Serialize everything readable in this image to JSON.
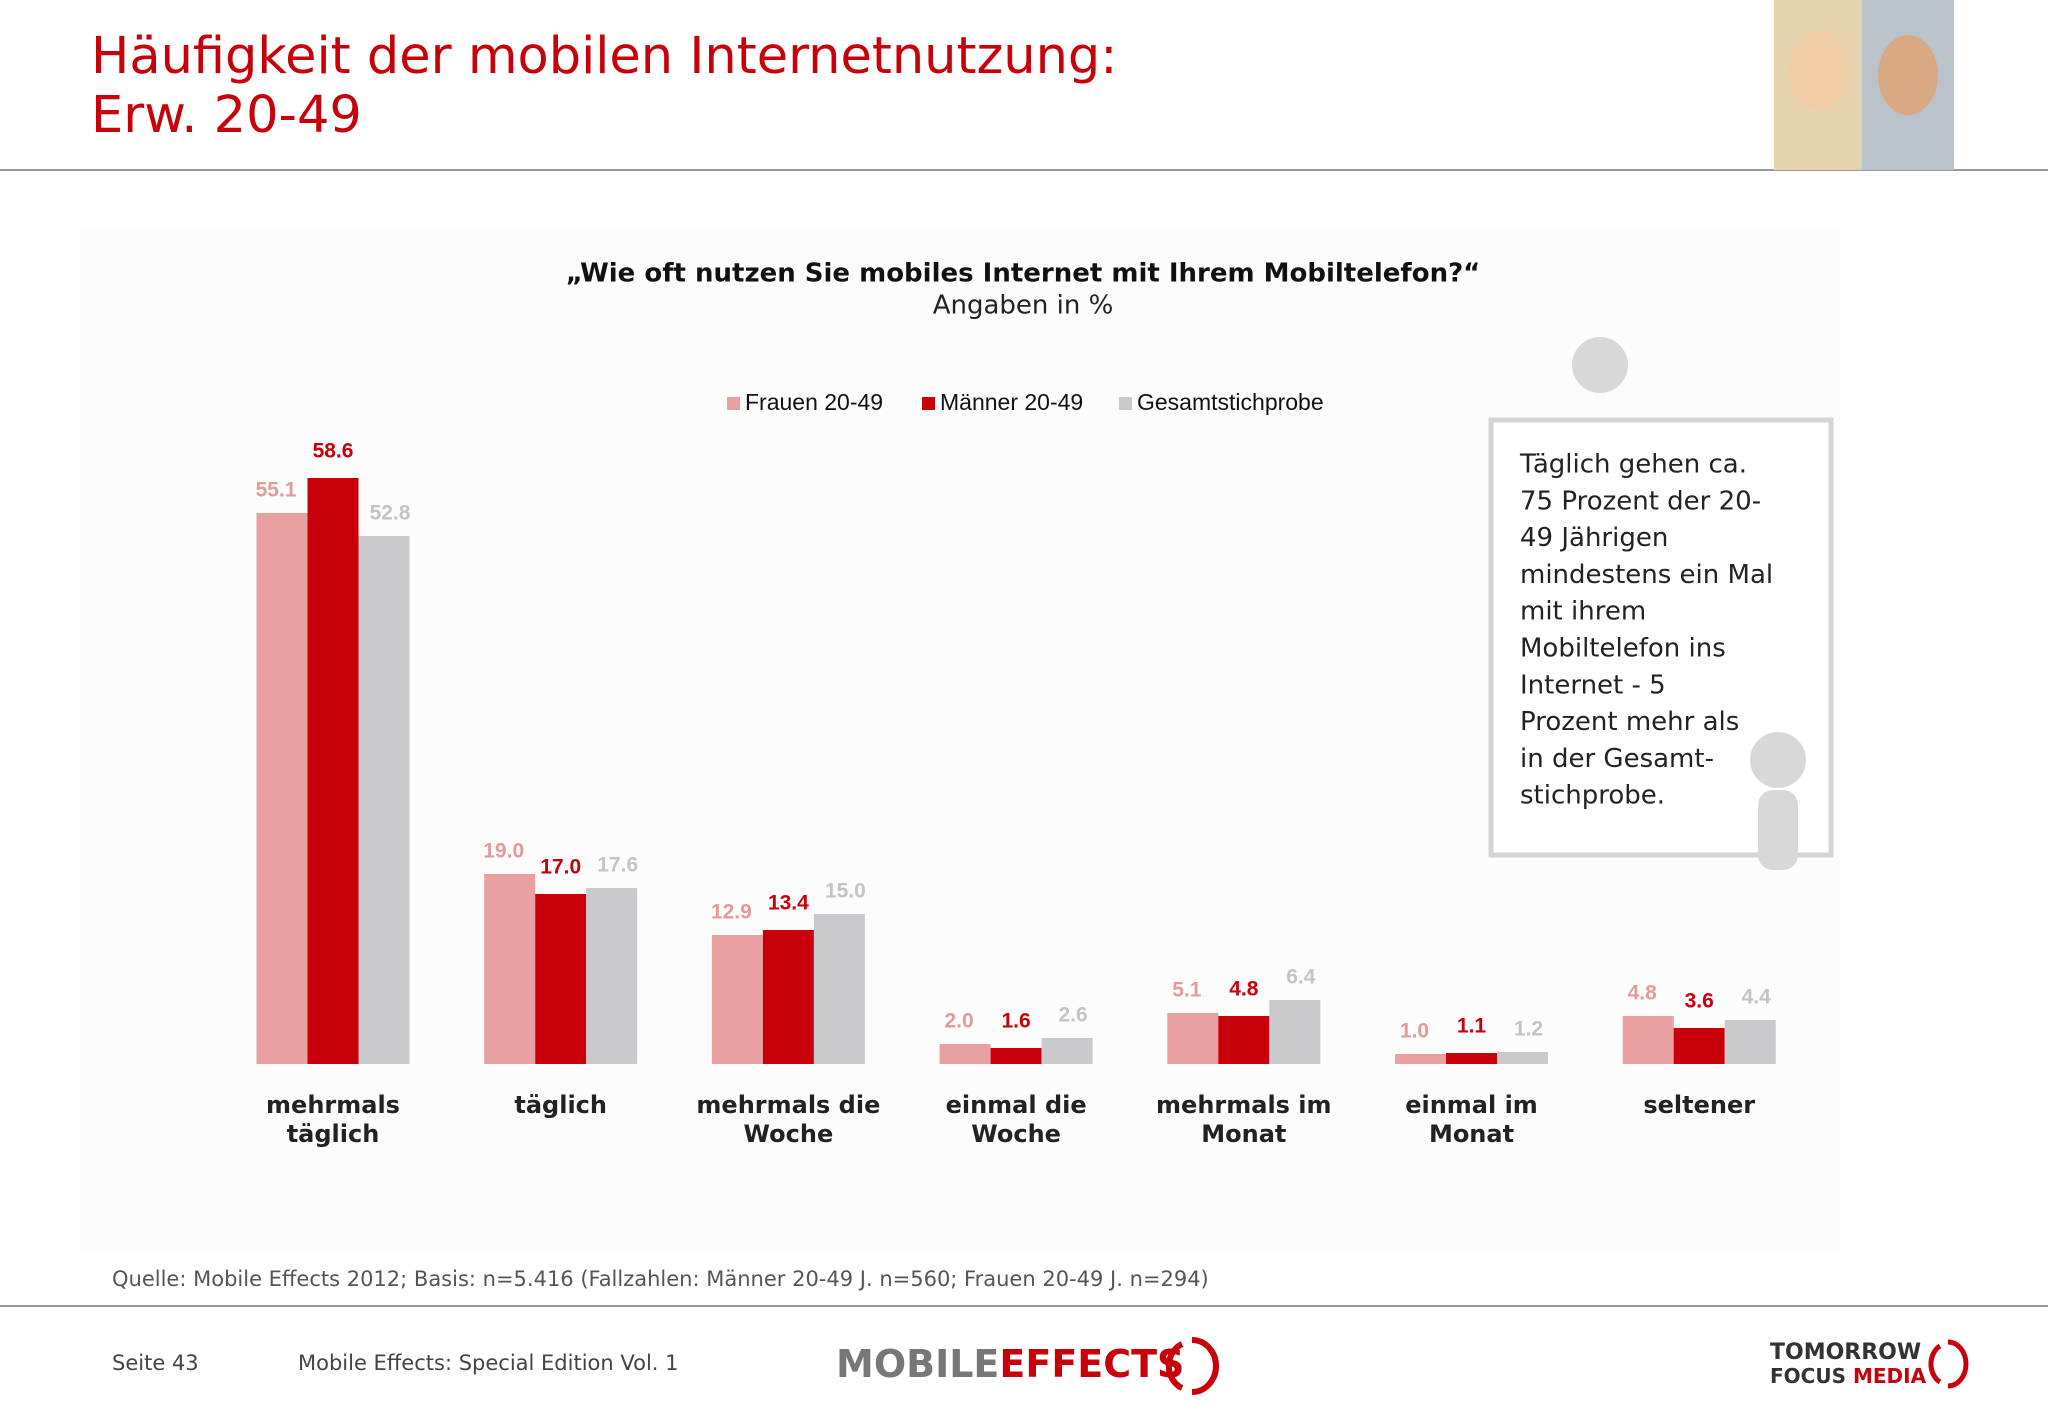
{
  "header": {
    "title_lines": [
      "Häufigkeit der mobilen Internetnutzung:",
      "Erw. 20-49"
    ]
  },
  "chart_data": {
    "type": "bar",
    "title": "„Wie oft nutzen Sie mobiles Internet mit Ihrem Mobiltelefon?“",
    "subtitle": "Angaben in %",
    "categories": [
      "mehrmals täglich",
      "täglich",
      "mehrmals die Woche",
      "einmal die Woche",
      "mehrmals im Monat",
      "einmal im Monat",
      "seltener"
    ],
    "series": [
      {
        "name": "Frauen 20-49",
        "color": "#e8a0a0",
        "label_color": "#e59a9a",
        "values": [
          55.1,
          19.0,
          12.9,
          2.0,
          5.1,
          1.0,
          4.8
        ],
        "value_labels": [
          "55.1",
          "19.0",
          "12.9",
          "2.0",
          "5.1",
          "1.0",
          "4.8"
        ]
      },
      {
        "name": "Männer 20-49",
        "color": "#c8000a",
        "label_color": "#c8000a",
        "values": [
          58.6,
          17.0,
          13.4,
          1.6,
          4.8,
          1.1,
          3.6
        ],
        "value_labels": [
          "58.6",
          "17.0",
          "13.4",
          "1.6",
          "4.8",
          "1.1",
          "3.6"
        ]
      },
      {
        "name": "Gesamtstichprobe",
        "color": "#c9c9cb",
        "label_color": "#c4c4c6",
        "values": [
          52.8,
          17.6,
          15.0,
          2.6,
          6.4,
          1.2,
          4.4
        ],
        "value_labels": [
          "52.8",
          "17.6",
          "15.0",
          "2.6",
          "6.4",
          "1.2",
          "4.4"
        ]
      }
    ],
    "ylim": [
      0,
      60
    ],
    "legend": "top"
  },
  "callout": {
    "lines": [
      "Täglich gehen ca.",
      "75 Prozent der 20-",
      "49 Jährigen",
      "mindestens ein Mal",
      "mit ihrem",
      "Mobiltelefon ins",
      "Internet - 5",
      "Prozent mehr als",
      "in der Gesamt-",
      "stichprobe."
    ]
  },
  "source": "Quelle: Mobile Effects 2012; Basis: n=5.416 (Fallzahlen: Männer 20-49 J. n=560; Frauen 20-49 J. n=294)",
  "footer": {
    "page": "Seite 43",
    "edition": "Mobile Effects: Special Edition Vol. 1",
    "logo_left_a": "MOBILE",
    "logo_left_b": "EFFECTS",
    "logo_right_1": "TOMORROW",
    "logo_right_2": "FOCUS",
    "logo_right_3": "MEDIA"
  }
}
